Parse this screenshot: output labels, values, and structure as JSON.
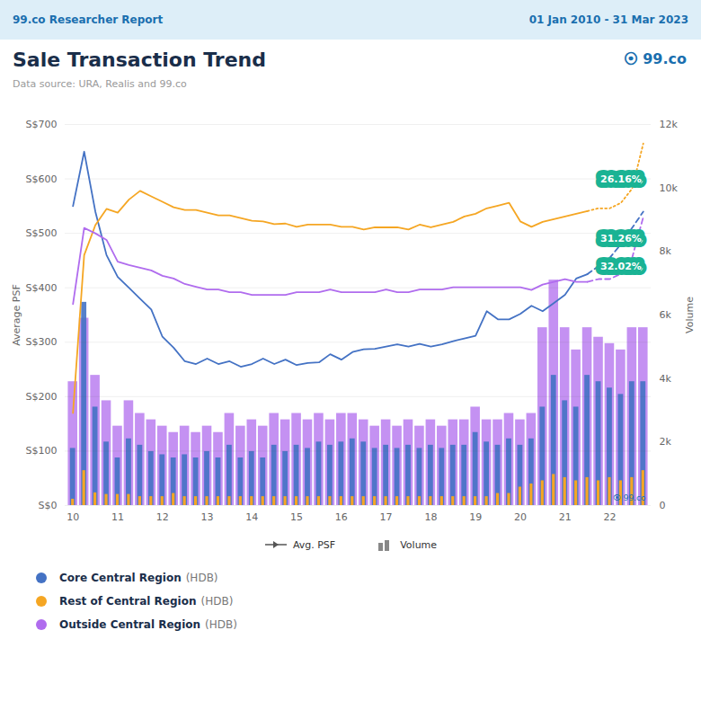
{
  "chart_data": {
    "type": "bar",
    "header_left": "99.co Researcher Report",
    "header_right": "01 Jan 2010 - 31 Mar 2023",
    "title": "Sale Transaction Trend",
    "subtitle": "Data source: URA, Realis and 99.co",
    "logo": "⦿ 99.co",
    "background_color": "#ffffff",
    "header_bg": "#ddeef8",
    "ylabel": "Average PSF",
    "y2label": "Volume",
    "categories": [
      "10",
      null,
      null,
      null,
      "11",
      null,
      null,
      null,
      "12",
      null,
      null,
      null,
      "13",
      null,
      null,
      null,
      "14",
      null,
      null,
      null,
      "15",
      null,
      null,
      null,
      "16",
      null,
      null,
      null,
      "17",
      null,
      null,
      null,
      "18",
      null,
      null,
      null,
      "19",
      null,
      null,
      null,
      "20",
      null,
      null,
      null,
      "21",
      null,
      null,
      null,
      "22",
      null,
      null,
      null
    ],
    "ylim": [
      0,
      700
    ],
    "yticks": [
      {
        "value": 0,
        "label": "S$0"
      },
      {
        "value": 100,
        "label": "S$100"
      },
      {
        "value": 200,
        "label": "S$200"
      },
      {
        "value": 300,
        "label": "S$300"
      },
      {
        "value": 400,
        "label": "S$400"
      },
      {
        "value": 500,
        "label": "S$500"
      },
      {
        "value": 600,
        "label": "S$600"
      },
      {
        "value": 700,
        "label": "S$700"
      }
    ],
    "y2lim": [
      0,
      12000
    ],
    "y2ticks": [
      0,
      {
        "value": 2000,
        "label": "2k"
      },
      {
        "value": 4000,
        "label": "4k"
      },
      {
        "value": 6000,
        "label": "6k"
      },
      {
        "value": 8000,
        "label": "8k"
      },
      {
        "value": 10000,
        "label": "10k"
      },
      {
        "value": 12000,
        "label": "12k"
      }
    ],
    "grid": true,
    "legend": "bottom",
    "legend_items": [
      {
        "label": "Avg. PSF",
        "type": "line"
      },
      {
        "label": "Volume",
        "type": "bar"
      }
    ],
    "annotation_color": "#1ab394",
    "annotations": [
      {
        "x": 49,
        "y": 600,
        "text": "26.16%"
      },
      {
        "x": 49,
        "y": 490,
        "text": "31.26%"
      },
      {
        "x": 49,
        "y": 440,
        "text": "32.02%"
      }
    ],
    "series": [
      {
        "type": "bar",
        "axis": "y2",
        "color": "#b06cee",
        "values": [
          3900,
          5900,
          4100,
          3300,
          2500,
          3300,
          2900,
          2700,
          2500,
          2300,
          2500,
          2300,
          2500,
          2300,
          2900,
          2500,
          2700,
          2500,
          2900,
          2700,
          2900,
          2700,
          2900,
          2700,
          2900,
          2900,
          2700,
          2500,
          2700,
          2500,
          2700,
          2500,
          2700,
          2500,
          2700,
          2700,
          3100,
          2700,
          2700,
          2900,
          2700,
          2900,
          5600,
          7100,
          5600,
          4900,
          5600,
          5300,
          5100,
          4900,
          5600,
          5600
        ]
      },
      {
        "type": "bar",
        "axis": "y2",
        "color": "#4472c4",
        "values": [
          1800,
          6400,
          3100,
          2000,
          1500,
          2100,
          1900,
          1700,
          1600,
          1500,
          1600,
          1500,
          1700,
          1500,
          1900,
          1500,
          1700,
          1500,
          1900,
          1700,
          1900,
          1800,
          2000,
          1900,
          2000,
          2100,
          2000,
          1800,
          1900,
          1800,
          1900,
          1800,
          1900,
          1800,
          1900,
          1900,
          2300,
          2000,
          1900,
          2100,
          1900,
          2100,
          3100,
          4100,
          3300,
          3100,
          4100,
          3900,
          3700,
          3500,
          3900,
          3900
        ]
      },
      {
        "type": "bar",
        "axis": "y2",
        "color": "#f5a623",
        "values": [
          200,
          1100,
          400,
          350,
          350,
          350,
          280,
          280,
          280,
          380,
          280,
          280,
          280,
          280,
          280,
          280,
          280,
          280,
          280,
          280,
          280,
          280,
          280,
          280,
          280,
          280,
          280,
          280,
          280,
          280,
          280,
          280,
          280,
          280,
          280,
          280,
          280,
          280,
          380,
          380,
          580,
          680,
          780,
          980,
          880,
          780,
          880,
          780,
          880,
          780,
          880,
          1100
        ]
      },
      {
        "name": "Core Central Region",
        "note": "(HDB)",
        "type": "line",
        "line_style": "solid",
        "color": "#4472c4",
        "values": [
          550,
          650,
          540,
          460,
          420,
          400,
          380,
          360,
          310,
          290,
          265,
          260,
          270,
          260,
          265,
          255,
          260,
          270,
          260,
          268,
          258,
          262,
          263,
          278,
          268,
          282,
          287,
          288,
          292,
          296,
          292,
          297,
          292,
          296,
          302,
          307,
          312,
          357,
          342,
          342,
          352,
          367,
          357,
          372,
          387,
          417,
          425,
          null,
          null,
          null,
          null,
          null
        ]
      },
      {
        "name": "Rest of Central Region",
        "note": "(HDB)",
        "type": "line",
        "line_style": "solid",
        "color": "#f5a623",
        "values": [
          170,
          460,
          515,
          545,
          538,
          562,
          578,
          568,
          558,
          548,
          543,
          543,
          538,
          533,
          533,
          528,
          523,
          522,
          517,
          518,
          512,
          516,
          516,
          516,
          512,
          512,
          507,
          511,
          511,
          511,
          507,
          516,
          511,
          516,
          521,
          531,
          536,
          546,
          551,
          556,
          522,
          512,
          521,
          526,
          531,
          536,
          541,
          null,
          null,
          null,
          null,
          null
        ]
      },
      {
        "name": "Outside Central Region",
        "note": "(HDB)",
        "type": "line",
        "line_style": "solid",
        "color": "#b06cee",
        "values": [
          370,
          510,
          500,
          488,
          448,
          442,
          437,
          432,
          422,
          417,
          407,
          402,
          397,
          397,
          392,
          392,
          387,
          387,
          387,
          387,
          392,
          392,
          392,
          397,
          392,
          392,
          392,
          392,
          397,
          392,
          392,
          397,
          397,
          397,
          401,
          401,
          401,
          401,
          401,
          401,
          401,
          396,
          406,
          411,
          416,
          411,
          411,
          null,
          null,
          null,
          null,
          null
        ]
      },
      {
        "type": "line",
        "line_style": "dashed",
        "color": "#4472c4",
        "values": [
          null,
          null,
          null,
          null,
          null,
          null,
          null,
          null,
          null,
          null,
          null,
          null,
          null,
          null,
          null,
          null,
          null,
          null,
          null,
          null,
          null,
          null,
          null,
          null,
          null,
          null,
          null,
          null,
          null,
          null,
          null,
          null,
          null,
          null,
          null,
          null,
          null,
          null,
          null,
          null,
          null,
          null,
          null,
          null,
          null,
          null,
          425,
          440,
          455,
          480,
          510,
          540
        ]
      },
      {
        "type": "line",
        "line_style": "dotted",
        "color": "#f5a623",
        "values": [
          null,
          null,
          null,
          null,
          null,
          null,
          null,
          null,
          null,
          null,
          null,
          null,
          null,
          null,
          null,
          null,
          null,
          null,
          null,
          null,
          null,
          null,
          null,
          null,
          null,
          null,
          null,
          null,
          null,
          null,
          null,
          null,
          null,
          null,
          null,
          null,
          null,
          null,
          null,
          null,
          null,
          null,
          null,
          null,
          null,
          null,
          541,
          546,
          546,
          556,
          582,
          665
        ]
      },
      {
        "type": "line",
        "line_style": "dashed",
        "color": "#b06cee",
        "values": [
          null,
          null,
          null,
          null,
          null,
          null,
          null,
          null,
          null,
          null,
          null,
          null,
          null,
          null,
          null,
          null,
          null,
          null,
          null,
          null,
          null,
          null,
          null,
          null,
          null,
          null,
          null,
          null,
          null,
          null,
          null,
          null,
          null,
          null,
          null,
          null,
          null,
          null,
          null,
          null,
          null,
          null,
          null,
          null,
          null,
          null,
          411,
          416,
          416,
          426,
          455,
          530
        ]
      }
    ]
  }
}
